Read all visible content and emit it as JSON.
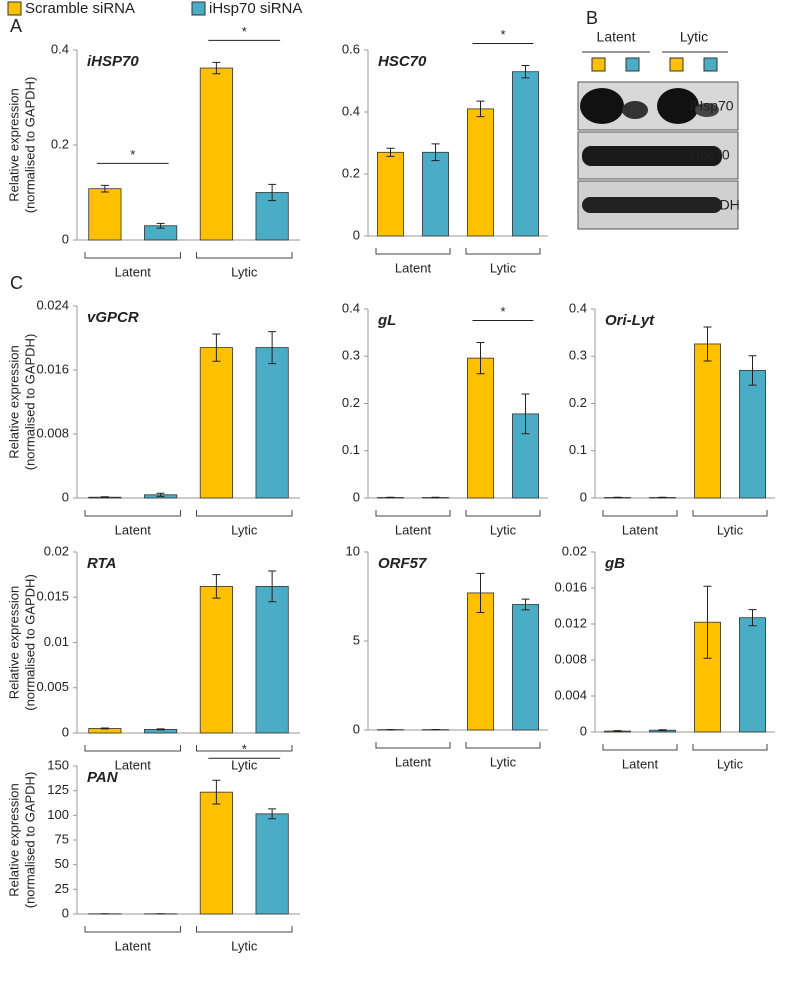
{
  "panel_labels": [
    "A",
    "B",
    "C"
  ],
  "blot": {
    "groups": [
      "Latent",
      "Lytic"
    ],
    "bands": [
      "iHsp70",
      "Hsc70",
      "GAPDH"
    ]
  },
  "chart_data": [
    {
      "type": "bar",
      "title": "iHSP70",
      "ylabel": [
        "Relative expression",
        "(normalised to GAPDH)"
      ],
      "categories": [
        "Latent",
        "Lytic"
      ],
      "series": [
        {
          "name": "Scramble siRNA",
          "color": "#FFC000",
          "values": [
            0.108,
            0.362
          ],
          "errors": [
            0.007,
            0.012
          ]
        },
        {
          "name": "iHsp70 siRNA",
          "color": "#4BACC6",
          "values": [
            0.03,
            0.1
          ],
          "errors": [
            0.005,
            0.017
          ]
        }
      ],
      "ylim": [
        0,
        0.4
      ],
      "yticks": [
        0,
        0.2,
        0.4
      ],
      "annotations": [
        {
          "text": "*",
          "at": "Latent"
        },
        {
          "text": "*",
          "at": "Lytic"
        }
      ]
    },
    {
      "type": "bar",
      "title": "HSC70",
      "categories": [
        "Latent",
        "Lytic"
      ],
      "series": [
        {
          "color": "#FFC000",
          "values": [
            0.27,
            0.41
          ],
          "errors": [
            0.013,
            0.025
          ]
        },
        {
          "color": "#4BACC6",
          "values": [
            0.27,
            0.53
          ],
          "errors": [
            0.027,
            0.02
          ]
        }
      ],
      "ylim": [
        0,
        0.6
      ],
      "yticks": [
        0,
        0.2,
        0.4,
        0.6
      ],
      "annotations": [
        {
          "text": "*",
          "at": "Lytic"
        }
      ]
    },
    {
      "type": "bar",
      "title": "vGPCR",
      "ylabel": [
        "Relative expression",
        "(normalised to GAPDH)"
      ],
      "categories": [
        "Latent",
        "Lytic"
      ],
      "series": [
        {
          "color": "#FFC000",
          "values": [
            0.0001,
            0.0188
          ],
          "errors": [
            5e-05,
            0.0017
          ]
        },
        {
          "color": "#4BACC6",
          "values": [
            0.0004,
            0.0188
          ],
          "errors": [
            0.0002,
            0.002
          ]
        }
      ],
      "ylim": [
        0,
        0.024
      ],
      "yticks": [
        0,
        0.008,
        0.016,
        0.024
      ]
    },
    {
      "type": "bar",
      "title": "gL",
      "categories": [
        "Latent",
        "Lytic"
      ],
      "series": [
        {
          "color": "#FFC000",
          "values": [
            0.001,
            0.296
          ],
          "errors": [
            0.0005,
            0.033
          ]
        },
        {
          "color": "#4BACC6",
          "values": [
            0.001,
            0.178
          ],
          "errors": [
            0.0005,
            0.042
          ]
        }
      ],
      "ylim": [
        0,
        0.4
      ],
      "yticks": [
        0,
        0.1,
        0.2,
        0.3,
        0.4
      ],
      "annotations": [
        {
          "text": "*",
          "at": "Lytic"
        }
      ]
    },
    {
      "type": "bar",
      "title": "Ori-Lyt",
      "categories": [
        "Latent",
        "Lytic"
      ],
      "series": [
        {
          "color": "#FFC000",
          "values": [
            0.001,
            0.326
          ],
          "errors": [
            0.0005,
            0.036
          ]
        },
        {
          "color": "#4BACC6",
          "values": [
            0.001,
            0.27
          ],
          "errors": [
            0.0005,
            0.031
          ]
        }
      ],
      "ylim": [
        0,
        0.4
      ],
      "yticks": [
        0,
        0.1,
        0.2,
        0.3,
        0.4
      ]
    },
    {
      "type": "bar",
      "title": "RTA",
      "ylabel": [
        "Relative expression",
        "(normalised to GAPDH)"
      ],
      "categories": [
        "Latent",
        "Lytic"
      ],
      "series": [
        {
          "color": "#FFC000",
          "values": [
            0.0005,
            0.0162
          ],
          "errors": [
            5e-05,
            0.0013
          ]
        },
        {
          "color": "#4BACC6",
          "values": [
            0.0004,
            0.0162
          ],
          "errors": [
            5e-05,
            0.0017
          ]
        }
      ],
      "ylim": [
        0,
        0.02
      ],
      "yticks": [
        0,
        0.005,
        0.01,
        0.015,
        0.02
      ]
    },
    {
      "type": "bar",
      "title": "ORF57",
      "categories": [
        "Latent",
        "Lytic"
      ],
      "series": [
        {
          "color": "#FFC000",
          "values": [
            0.02,
            7.7
          ],
          "errors": [
            0.005,
            1.1
          ]
        },
        {
          "color": "#4BACC6",
          "values": [
            0.02,
            7.05
          ],
          "errors": [
            0.005,
            0.3
          ]
        }
      ],
      "ylim": [
        0,
        10
      ],
      "yticks": [
        0,
        5,
        10
      ]
    },
    {
      "type": "bar",
      "title": "gB",
      "categories": [
        "Latent",
        "Lytic"
      ],
      "series": [
        {
          "color": "#FFC000",
          "values": [
            0.0001,
            0.0122
          ],
          "errors": [
            5e-05,
            0.004
          ]
        },
        {
          "color": "#4BACC6",
          "values": [
            0.0002,
            0.0127
          ],
          "errors": [
            5e-05,
            0.0009
          ]
        }
      ],
      "ylim": [
        0,
        0.02
      ],
      "yticks": [
        0,
        0.004,
        0.008,
        0.012,
        0.016,
        0.02
      ]
    },
    {
      "type": "bar",
      "title": "PAN",
      "ylabel": [
        "Relative expression",
        "(normalised to GAPDH)"
      ],
      "categories": [
        "Latent",
        "Lytic"
      ],
      "series": [
        {
          "color": "#FFC000",
          "values": [
            0.2,
            123.5
          ],
          "errors": [
            0.1,
            12
          ]
        },
        {
          "color": "#4BACC6",
          "values": [
            0.2,
            101.5
          ],
          "errors": [
            0.1,
            5
          ]
        }
      ],
      "ylim": [
        0,
        150
      ],
      "yticks": [
        0,
        25,
        50,
        75,
        100,
        125,
        150
      ],
      "annotations": [
        {
          "text": "*",
          "at": "Lytic"
        }
      ]
    }
  ]
}
